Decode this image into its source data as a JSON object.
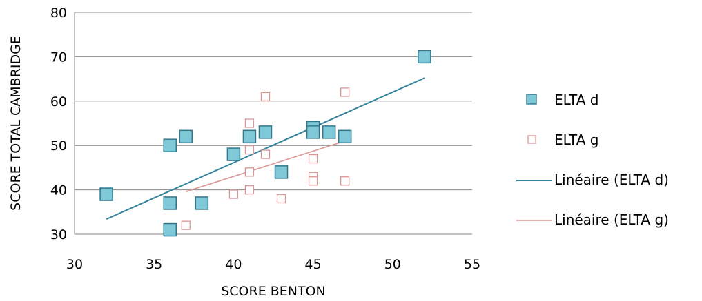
{
  "chart_data": {
    "type": "scatter",
    "xlabel": "SCORE BENTON",
    "ylabel": "SCORE TOTAL CAMBRIDGE",
    "xlim": [
      30,
      55
    ],
    "ylim": [
      30,
      80
    ],
    "xticks": [
      30,
      35,
      40,
      45,
      50,
      55
    ],
    "yticks": [
      30,
      40,
      50,
      60,
      70,
      80
    ],
    "grid": "horizontal",
    "legend_position": "right",
    "series": [
      {
        "name": "ELTA d",
        "marker": "filled-square",
        "color": "#7ec8d8",
        "edge_color": "#31788c",
        "points": [
          [
            32,
            39
          ],
          [
            36,
            50
          ],
          [
            36,
            37
          ],
          [
            36,
            31
          ],
          [
            37,
            52
          ],
          [
            38,
            37
          ],
          [
            40,
            48
          ],
          [
            41,
            52
          ],
          [
            42,
            53
          ],
          [
            43,
            44
          ],
          [
            45,
            54
          ],
          [
            45,
            53
          ],
          [
            46,
            53
          ],
          [
            47,
            52
          ],
          [
            52,
            70
          ]
        ]
      },
      {
        "name": "ELTA g",
        "marker": "hollow-square",
        "color": "#d99694",
        "points": [
          [
            37,
            32
          ],
          [
            40,
            39
          ],
          [
            41,
            55
          ],
          [
            41,
            49
          ],
          [
            41,
            44
          ],
          [
            41,
            40
          ],
          [
            42,
            61
          ],
          [
            42,
            48
          ],
          [
            43,
            38
          ],
          [
            45,
            47
          ],
          [
            45,
            43
          ],
          [
            45,
            42
          ],
          [
            47,
            62
          ],
          [
            47,
            42
          ]
        ]
      }
    ],
    "trendlines": [
      {
        "name": "Linéaire  (ELTA d)",
        "color": "#31849b",
        "x": [
          32,
          52
        ],
        "y": [
          33.4,
          65.2
        ]
      },
      {
        "name": "Linéaire  (ELTA g)",
        "color": "#d99694",
        "x": [
          37,
          47
        ],
        "y": [
          39.6,
          51.0
        ]
      }
    ]
  }
}
